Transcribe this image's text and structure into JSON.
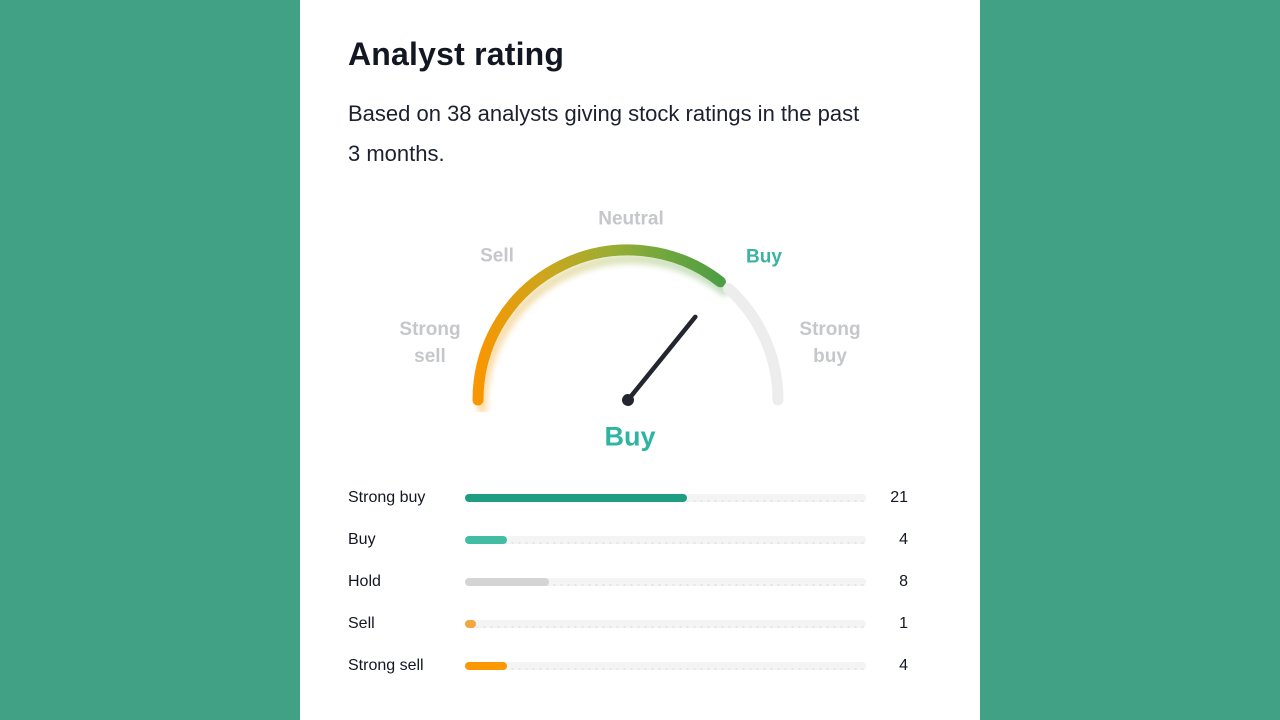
{
  "header": {
    "title": "Analyst rating",
    "subtitle": "Based on 38 analysts giving stock ratings in the past 3 months."
  },
  "gauge": {
    "labels": {
      "strong_sell": "Strong sell",
      "sell": "Sell",
      "neutral": "Neutral",
      "buy": "Buy",
      "strong_buy": "Strong buy"
    },
    "current_rating": "Buy",
    "needle_angle_deg": 51,
    "colors": {
      "arc_gradient": [
        "#f99600",
        "#c8a71f",
        "#9aad34",
        "#6ba63f",
        "#4f9d45"
      ],
      "arc_remainder": "#ededed",
      "needle": "#23262f",
      "active_label": "#3bb3a2",
      "inactive_label": "#c5c7cb",
      "rating_text": "#2db5a2"
    }
  },
  "ratings": {
    "total": 38,
    "rows": [
      {
        "label": "Strong buy",
        "value": 21,
        "color": "#1d9e83"
      },
      {
        "label": "Buy",
        "value": 4,
        "color": "#42bda2"
      },
      {
        "label": "Hold",
        "value": 8,
        "color": "#d4d4d4"
      },
      {
        "label": "Sell",
        "value": 1,
        "color": "#f4a63f"
      },
      {
        "label": "Strong sell",
        "value": 4,
        "color": "#fb9802"
      }
    ]
  },
  "colors": {
    "page_background": "#41a184",
    "card_background": "#ffffff",
    "title_text": "#131722",
    "subtitle_text": "#1c2030",
    "row_text": "#131722",
    "bar_track": "#f4f4f4"
  },
  "chart_data": [
    {
      "type": "gauge",
      "title": "Analyst rating",
      "subtitle": "Based on 38 analysts giving stock ratings in the past 3 months.",
      "scale": [
        "Strong sell",
        "Sell",
        "Neutral",
        "Buy",
        "Strong buy"
      ],
      "value": "Buy",
      "filled_span": "Strong sell through Buy (orange-to-green gradient), remainder gray"
    },
    {
      "type": "bar",
      "categories": [
        "Strong buy",
        "Buy",
        "Hold",
        "Sell",
        "Strong sell"
      ],
      "values": [
        21,
        4,
        8,
        1,
        4
      ],
      "title": "Analyst rating distribution",
      "xlabel": "",
      "ylabel": "",
      "total_analysts": 38,
      "orientation": "horizontal",
      "legend_position": "none",
      "grid": false
    }
  ]
}
